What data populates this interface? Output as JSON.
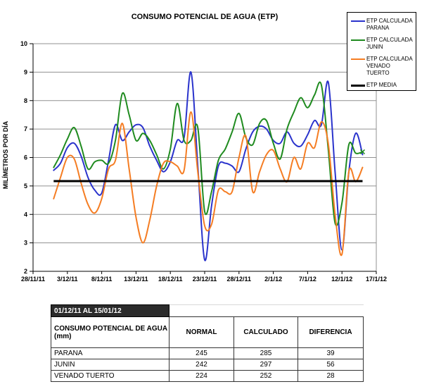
{
  "chart": {
    "title": "CONSUMO POTENCIAL DE AGUA (ETP)",
    "y_axis_label": "MILÍMETROS POR DÍA",
    "legend": [
      {
        "line1": "ETP CALCULADA",
        "line2": "PARANA"
      },
      {
        "line1": "ETP CALCULADA",
        "line2": "JUNIN"
      },
      {
        "line1": "ETP CALCULADA",
        "line2": "VENADO TUERTO"
      },
      {
        "line1": "ETP MEDIA",
        "line2": ""
      }
    ]
  },
  "chart_data": {
    "type": "line",
    "title": "CONSUMO POTENCIAL DE AGUA (ETP)",
    "xlabel": "",
    "ylabel": "MILÍMETROS POR DÍA",
    "ylim": [
      2,
      10
    ],
    "y_ticks": [
      10,
      9,
      8,
      7,
      6,
      5,
      4,
      3,
      2
    ],
    "x_tick_labels": [
      "28/11/11",
      "3/12/11",
      "8/12/11",
      "13/12/11",
      "18/12/11",
      "23/12/11",
      "28/12/11",
      "2/1/12",
      "7/1/12",
      "12/1/12",
      "17/1/12"
    ],
    "x_axis_span_days": 50,
    "series_period": "01/12/11 AL 15/01/12",
    "series_start_day_offset": 3,
    "grid": "horizontal",
    "legend_position": "top-right",
    "colors": {
      "parana": "#2a33cc",
      "junin": "#1f8b1f",
      "venado_tuerto": "#f57d23",
      "media": "#000000"
    },
    "series": [
      {
        "name": "ETP CALCULADA PARANA",
        "color": "#2a33cc",
        "width": 2,
        "values": [
          5.55,
          5.8,
          6.35,
          6.5,
          6.05,
          5.3,
          4.85,
          4.75,
          5.9,
          7.15,
          6.6,
          6.9,
          7.15,
          7.05,
          6.4,
          5.9,
          5.5,
          5.85,
          6.6,
          6.7,
          9.0,
          5.7,
          2.4,
          4.3,
          5.7,
          5.8,
          5.7,
          5.5,
          6.3,
          6.9,
          7.1,
          7.0,
          6.6,
          6.5,
          6.9,
          6.5,
          6.4,
          6.8,
          7.3,
          7.15,
          8.65,
          5.5,
          2.75,
          5.5,
          6.85,
          6.1
        ]
      },
      {
        "name": "ETP CALCULADA JUNIN",
        "color": "#1f8b1f",
        "width": 2,
        "end_marker": "x",
        "values": [
          5.65,
          6.1,
          6.65,
          7.05,
          6.4,
          5.6,
          5.85,
          5.9,
          5.8,
          6.6,
          8.25,
          7.5,
          6.6,
          6.85,
          6.6,
          6.1,
          5.6,
          6.3,
          7.9,
          6.6,
          6.6,
          7.05,
          4.1,
          4.8,
          5.9,
          6.3,
          6.9,
          7.55,
          6.7,
          6.45,
          7.2,
          7.3,
          6.5,
          5.95,
          7.0,
          7.6,
          8.1,
          7.75,
          8.2,
          8.55,
          6.3,
          3.7,
          4.4,
          6.45,
          6.15,
          6.2
        ]
      },
      {
        "name": "ETP CALCULADA VENADO TUERTO",
        "color": "#f57d23",
        "width": 2,
        "values": [
          4.55,
          5.3,
          6.0,
          5.95,
          5.1,
          4.35,
          4.05,
          4.55,
          5.6,
          5.9,
          7.2,
          5.6,
          3.9,
          3.0,
          3.8,
          5.0,
          5.8,
          5.85,
          5.7,
          5.55,
          7.6,
          5.5,
          3.6,
          3.65,
          4.85,
          4.8,
          4.8,
          6.0,
          6.75,
          4.8,
          5.5,
          6.1,
          6.25,
          5.6,
          5.15,
          6.0,
          5.6,
          6.5,
          6.35,
          7.25,
          6.5,
          4.0,
          2.6,
          5.5,
          5.15,
          5.65
        ]
      },
      {
        "name": "ETP MEDIA",
        "color": "#000000",
        "width": 3,
        "constant": 5.17
      }
    ]
  },
  "table": {
    "period_label": "01/12/11 AL 15/01/12",
    "headers": [
      "CONSUMO POTENCIAL DE AGUA (mm)",
      "NORMAL",
      "CALCULADO",
      "DIFERENCIA"
    ],
    "rows": [
      {
        "location": "PARANA",
        "normal": "245",
        "calculado": "285",
        "diferencia": "39"
      },
      {
        "location": "JUNIN",
        "normal": "242",
        "calculado": "297",
        "diferencia": "56"
      },
      {
        "location": "VENADO TUERTO",
        "normal": "224",
        "calculado": "252",
        "diferencia": "28"
      }
    ]
  }
}
